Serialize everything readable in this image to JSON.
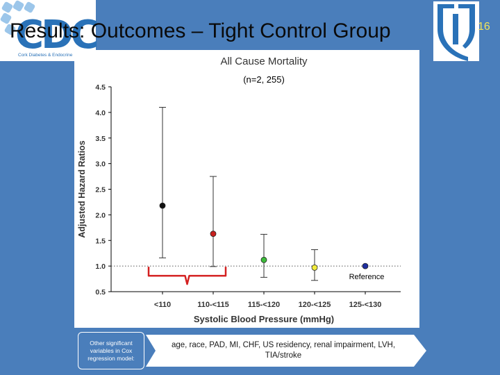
{
  "slide": {
    "title": "Results: Outcomes – Tight Control Group",
    "slide_number": "16",
    "logo_mark": "CDC",
    "logo_text": "Cork Diabetes & Endocrine"
  },
  "footer": {
    "note_label": "Other significant variables in Cox regression model:",
    "variables_text": "age, race, PAD, MI, CHF, US residency, renal impairment, LVH, TIA/stroke"
  },
  "chart_data": {
    "type": "scatter",
    "title": "All Cause Mortality",
    "subtitle": "(n=2, 255)",
    "xlabel": "Systolic Blood Pressure (mmHg)",
    "ylabel": "Adjusted Hazard Ratios",
    "categories": [
      "<110",
      "110-<115",
      "115-<120",
      "120-<125",
      "125-<130"
    ],
    "values": [
      2.18,
      1.63,
      1.12,
      0.97,
      1.0
    ],
    "ci_lower": [
      1.16,
      0.99,
      0.78,
      0.72,
      null
    ],
    "ci_upper": [
      4.1,
      2.75,
      1.62,
      1.32,
      null
    ],
    "point_colors": [
      "#111111",
      "#c8201e",
      "#3dbb3a",
      "#f2ec3c",
      "#1f2fa0"
    ],
    "reference_line": 1.0,
    "reference_label": "Reference",
    "ylim": [
      0.5,
      4.5
    ],
    "yticks": [
      "0.5",
      "1.0",
      "1.5",
      "2.0",
      "2.5",
      "3.0",
      "3.5",
      "4.0",
      "4.5"
    ],
    "grid": false,
    "brace_color": "#d42020"
  }
}
